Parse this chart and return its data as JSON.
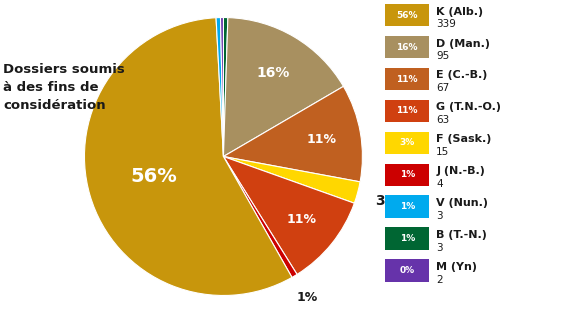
{
  "title": "Dossiers soumis\nà des fins de\nconsidération",
  "slices": [
    {
      "label": "K (Alb.)",
      "value": 339,
      "pct": 56,
      "color": "#C8960C"
    },
    {
      "label": "D (Man.)",
      "value": 95,
      "pct": 16,
      "color": "#A89060"
    },
    {
      "label": "E (C.-B.)",
      "value": 67,
      "pct": 11,
      "color": "#C06020"
    },
    {
      "label": "G (T.N.-O.)",
      "value": 63,
      "pct": 11,
      "color": "#D04010"
    },
    {
      "label": "F (Sask.)",
      "value": 15,
      "pct": 3,
      "color": "#FFD700"
    },
    {
      "label": "J (N.-B.)",
      "value": 4,
      "pct": 1,
      "color": "#CC0000"
    },
    {
      "label": "V (Nun.)",
      "value": 3,
      "pct": 1,
      "color": "#00AAEE"
    },
    {
      "label": "B (T.-N.)",
      "value": 3,
      "pct": 1,
      "color": "#006633"
    },
    {
      "label": "M (Yn)",
      "value": 2,
      "pct": 0,
      "color": "#6633AA"
    }
  ],
  "pie_order": [
    7,
    1,
    2,
    4,
    3,
    5,
    0,
    6,
    8
  ],
  "background_color": "#FFFFFF",
  "text_color_dark": "#1a1a1a",
  "fig_width": 5.88,
  "fig_height": 3.13,
  "dpi": 100
}
